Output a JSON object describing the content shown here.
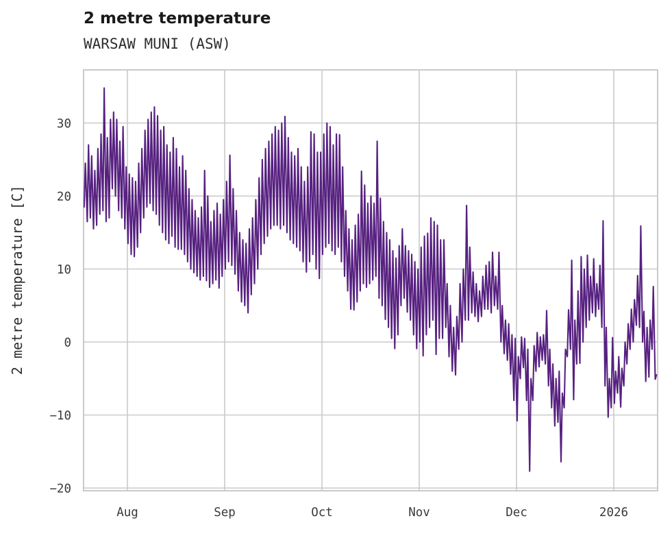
{
  "header": {
    "title": "2 metre temperature",
    "subtitle": "WARSAW MUNI (ASW)"
  },
  "chart_data": {
    "type": "line",
    "title": "2 metre temperature",
    "subtitle": "WARSAW MUNI (ASW)",
    "ylabel": "2 metre temperature [C]",
    "xlabel": "",
    "unit": "C",
    "grid": true,
    "legend": "none",
    "line_color": "#572180",
    "grid_color": "#cacaca",
    "text_color": "#3a3a3a",
    "ylim": [
      -20,
      37.3
    ],
    "y_ticks": [
      30,
      20,
      10,
      0,
      -10,
      -20
    ],
    "y_tick_labels": [
      "30",
      "20",
      "10",
      "0",
      "−10",
      "−20"
    ],
    "x_ticks": [
      {
        "label": "Aug",
        "month": "Aug"
      },
      {
        "label": "Sep",
        "month": "Sep"
      },
      {
        "label": "Oct",
        "month": "Oct"
      },
      {
        "label": "Nov",
        "month": "Nov"
      },
      {
        "label": "Dec",
        "month": "Dec"
      },
      {
        "label": "2026",
        "month": "Jan"
      }
    ],
    "x_start": "Jul 18",
    "x_end": "Jan 14 (2026)",
    "daily_min_max": [
      {
        "month": "Jul",
        "days": [
          [
            18,
            18.5,
            24.5
          ],
          [
            19,
            16.5,
            27
          ],
          [
            20,
            17,
            25.5
          ],
          [
            21,
            15.5,
            23.5
          ],
          [
            22,
            16,
            26.5
          ],
          [
            23,
            17.5,
            28.5
          ],
          [
            24,
            18,
            34.8
          ],
          [
            25,
            16.5,
            28
          ],
          [
            26,
            17,
            30.5
          ],
          [
            27,
            21,
            31.5
          ],
          [
            28,
            20,
            30.5
          ],
          [
            29,
            18,
            27.5
          ],
          [
            30,
            17,
            29.5
          ],
          [
            31,
            15.5,
            24
          ]
        ]
      },
      {
        "month": "Aug",
        "days": [
          [
            1,
            13.5,
            23
          ],
          [
            2,
            12,
            22.5
          ],
          [
            3,
            11.7,
            22
          ],
          [
            4,
            13,
            24.5
          ],
          [
            5,
            15,
            26.5
          ],
          [
            6,
            17,
            29
          ],
          [
            7,
            18.5,
            30.5
          ],
          [
            8,
            19,
            31.5
          ],
          [
            9,
            18,
            32.2
          ],
          [
            10,
            17.5,
            31
          ],
          [
            11,
            16,
            29
          ],
          [
            12,
            15,
            29.5
          ],
          [
            13,
            14,
            27
          ],
          [
            14,
            13.5,
            26
          ],
          [
            15,
            14.5,
            28
          ],
          [
            16,
            13,
            26.5
          ],
          [
            17,
            12.7,
            24
          ],
          [
            18,
            12.7,
            25.5
          ],
          [
            19,
            12,
            23.5
          ],
          [
            20,
            11,
            21
          ],
          [
            21,
            10,
            19.5
          ],
          [
            22,
            9.5,
            18
          ],
          [
            23,
            9,
            17
          ],
          [
            24,
            8.5,
            18.5
          ],
          [
            25,
            9,
            23.5
          ],
          [
            26,
            8.4,
            20
          ],
          [
            27,
            7.5,
            16.5
          ],
          [
            28,
            8,
            18
          ],
          [
            29,
            8.5,
            19
          ],
          [
            30,
            7.4,
            17.5
          ],
          [
            31,
            9,
            19.5
          ]
        ]
      },
      {
        "month": "Sep",
        "days": [
          [
            1,
            10,
            22
          ],
          [
            2,
            11,
            25.6
          ],
          [
            3,
            10.5,
            21
          ],
          [
            4,
            9.3,
            18
          ],
          [
            5,
            7,
            15
          ],
          [
            6,
            5.5,
            14
          ],
          [
            7,
            5,
            13.5
          ],
          [
            8,
            4,
            15.5
          ],
          [
            9,
            6.5,
            17
          ],
          [
            10,
            8,
            19.5
          ],
          [
            11,
            10,
            22.5
          ],
          [
            12,
            12,
            25
          ],
          [
            13,
            13.5,
            26.5
          ],
          [
            14,
            14.5,
            27.5
          ],
          [
            15,
            15.5,
            28.5
          ],
          [
            16,
            16,
            29.5
          ],
          [
            17,
            16,
            29
          ],
          [
            18,
            15.5,
            30
          ],
          [
            19,
            16,
            30.9
          ],
          [
            20,
            15,
            28
          ],
          [
            21,
            14,
            26
          ],
          [
            22,
            13.5,
            25.5
          ],
          [
            23,
            13,
            26.5
          ],
          [
            24,
            12.5,
            24
          ],
          [
            25,
            11,
            22
          ],
          [
            26,
            9.6,
            24
          ],
          [
            27,
            11,
            28.8
          ],
          [
            28,
            12,
            28.5
          ],
          [
            29,
            10,
            26
          ],
          [
            30,
            8.7,
            26
          ]
        ]
      },
      {
        "month": "Oct",
        "days": [
          [
            1,
            12,
            28.5
          ],
          [
            2,
            13,
            30
          ],
          [
            3,
            13.5,
            29.5
          ],
          [
            4,
            12.5,
            27
          ],
          [
            5,
            12,
            28.5
          ],
          [
            6,
            13,
            28.4
          ],
          [
            7,
            11,
            24
          ],
          [
            8,
            9,
            18
          ],
          [
            9,
            7,
            15.5
          ],
          [
            10,
            4.5,
            14
          ],
          [
            11,
            4.4,
            16
          ],
          [
            12,
            5.5,
            17.5
          ],
          [
            13,
            7,
            23.4
          ],
          [
            14,
            8,
            21.5
          ],
          [
            15,
            7.5,
            19
          ],
          [
            16,
            8,
            20
          ],
          [
            17,
            8.5,
            19
          ],
          [
            18,
            9,
            27.5
          ],
          [
            19,
            6,
            19.7
          ],
          [
            20,
            5,
            16.5
          ],
          [
            21,
            3.1,
            15
          ],
          [
            22,
            2,
            14
          ],
          [
            23,
            0.5,
            12.5
          ],
          [
            24,
            -0.9,
            11.5
          ],
          [
            25,
            1,
            13.2
          ],
          [
            26,
            5,
            15.5
          ],
          [
            27,
            6,
            13.2
          ],
          [
            28,
            4.1,
            12.5
          ],
          [
            29,
            3,
            12
          ],
          [
            30,
            1,
            11
          ],
          [
            31,
            -0.9,
            10
          ]
        ]
      },
      {
        "month": "Nov",
        "days": [
          [
            1,
            0,
            13
          ],
          [
            2,
            -1.9,
            14.5
          ],
          [
            3,
            1,
            14.9
          ],
          [
            4,
            2,
            17
          ],
          [
            5,
            3,
            16.5
          ],
          [
            6,
            -1.7,
            16
          ],
          [
            7,
            0.5,
            14
          ],
          [
            8,
            0.5,
            14
          ],
          [
            9,
            2,
            8
          ],
          [
            10,
            -2,
            5
          ],
          [
            11,
            -4,
            2
          ],
          [
            12,
            -4.5,
            3.5
          ],
          [
            13,
            -1,
            8
          ],
          [
            14,
            0,
            10
          ],
          [
            15,
            3,
            18.7
          ],
          [
            16,
            3,
            13
          ],
          [
            17,
            4,
            9.6
          ],
          [
            18,
            3.5,
            8
          ],
          [
            19,
            2.8,
            7
          ],
          [
            20,
            3.5,
            9
          ],
          [
            21,
            4.5,
            10.5
          ],
          [
            22,
            4.5,
            11
          ],
          [
            23,
            4,
            12.3
          ],
          [
            24,
            5,
            9
          ],
          [
            25,
            4.5,
            12.3
          ],
          [
            26,
            0,
            5
          ],
          [
            27,
            -1.6,
            3
          ],
          [
            28,
            -2.5,
            2.5
          ],
          [
            29,
            -4.4,
            1
          ],
          [
            30,
            -8,
            0.5
          ]
        ]
      },
      {
        "month": "Dec",
        "days": [
          [
            1,
            -10.8,
            -2
          ],
          [
            2,
            -5,
            0.7
          ],
          [
            3,
            -3.5,
            0.5
          ],
          [
            4,
            -8,
            -1
          ],
          [
            5,
            -17.7,
            -5
          ],
          [
            6,
            -8,
            -0.5
          ],
          [
            7,
            -4,
            1.3
          ],
          [
            8,
            -3.4,
            0.7
          ],
          [
            9,
            -2.5,
            1
          ],
          [
            10,
            -3,
            4.3
          ],
          [
            11,
            -6,
            -1
          ],
          [
            12,
            -9,
            -3
          ],
          [
            13,
            -11.5,
            -5
          ],
          [
            14,
            -11,
            -4
          ],
          [
            15,
            -16.4,
            -7
          ],
          [
            16,
            -9,
            -1
          ],
          [
            17,
            -2,
            4.4
          ],
          [
            18,
            -1,
            11.2
          ],
          [
            19,
            -7.9,
            3
          ],
          [
            20,
            -3,
            7
          ],
          [
            21,
            -2.9,
            11.7
          ],
          [
            22,
            0,
            10
          ],
          [
            23,
            2,
            11.9
          ],
          [
            24,
            3,
            9
          ],
          [
            25,
            4,
            11.4
          ],
          [
            26,
            3.5,
            8
          ],
          [
            27,
            4.5,
            10.5
          ],
          [
            28,
            2,
            16.6
          ],
          [
            29,
            -6,
            2
          ],
          [
            30,
            -10.3,
            -5
          ],
          [
            31,
            -9,
            0.6
          ]
        ]
      },
      {
        "month": "Jan",
        "days": [
          [
            1,
            -8.4,
            -4
          ],
          [
            2,
            -7,
            -2
          ],
          [
            3,
            -8.9,
            -3.6
          ],
          [
            4,
            -6,
            0
          ],
          [
            5,
            -3,
            2.5
          ],
          [
            6,
            -1,
            4.5
          ],
          [
            7,
            0,
            5.8
          ],
          [
            8,
            2.3,
            9.1
          ],
          [
            9,
            2,
            15.9
          ],
          [
            10,
            0,
            4.2
          ],
          [
            11,
            -5.4,
            2
          ],
          [
            12,
            -4.8,
            3
          ],
          [
            13,
            -1,
            7.6
          ],
          [
            14,
            -5.1,
            -4.5
          ]
        ]
      }
    ]
  }
}
